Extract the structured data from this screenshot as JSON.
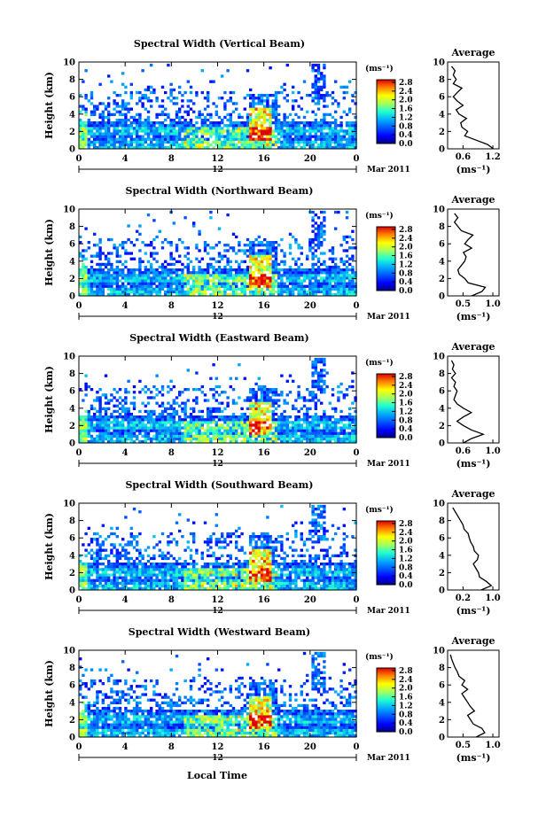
{
  "figure": {
    "date_label": "Mar 2011",
    "day_label": "12",
    "xlabel_bottom": "Local Time",
    "ylabel": "Height (km)",
    "colorbar_unit": "(ms⁻¹)",
    "avg_title": "Average",
    "avg_xlabel": "(ms⁻¹)",
    "x_ticks": [
      "0",
      "4",
      "8",
      "12",
      "16",
      "20",
      "0"
    ],
    "y_ticks": [
      "0",
      "2",
      "4",
      "6",
      "8",
      "10"
    ],
    "colorbar_ticks": [
      "0.0",
      "0.4",
      "0.8",
      "1.2",
      "1.6",
      "2.0",
      "2.4",
      "2.8"
    ],
    "panels": [
      {
        "title": "Spectral Width (Vertical Beam)",
        "avg_ticks": [
          "0.6",
          "1.2"
        ]
      },
      {
        "title": "Spectral Width (Northward Beam)",
        "avg_ticks": [
          "0.5",
          "1.0"
        ]
      },
      {
        "title": "Spectral Width (Eastward Beam)",
        "avg_ticks": [
          "0.6",
          "1.0"
        ]
      },
      {
        "title": "Spectral Width (Southward Beam)",
        "avg_ticks": [
          "0.2",
          "1.0"
        ]
      },
      {
        "title": "Spectral Width (Westward Beam)",
        "avg_ticks": [
          "0.5",
          "1.0"
        ]
      }
    ]
  },
  "chart_data": [
    {
      "type": "heatmap",
      "title": "Spectral Width (Vertical Beam)",
      "xlabel": "",
      "ylabel": "Height (km)",
      "xlim": [
        0,
        24
      ],
      "ylim": [
        0,
        10
      ],
      "colorbar": {
        "label": "(ms⁻¹)",
        "range": [
          0,
          2.8
        ]
      }
    },
    {
      "type": "line",
      "title": "Average",
      "xlabel": "(ms⁻¹)",
      "ylabel": "",
      "xlim": [
        0.45,
        1.35
      ],
      "ylim": [
        0,
        10
      ],
      "x": [
        1.25,
        1.15,
        0.95,
        0.75,
        0.8,
        0.7,
        0.68,
        0.78,
        0.65,
        0.6,
        0.72,
        0.62,
        0.55,
        0.62,
        0.7,
        0.55,
        0.6,
        0.55,
        0.58,
        0.52
      ],
      "y": [
        0,
        0.5,
        1,
        1.5,
        2,
        2.5,
        3,
        3.5,
        4,
        4.5,
        5,
        5.5,
        6,
        6.5,
        7,
        7.5,
        8,
        8.5,
        9,
        9.5
      ]
    },
    {
      "type": "heatmap",
      "title": "Spectral Width (Northward Beam)",
      "xlabel": "",
      "ylabel": "Height (km)",
      "xlim": [
        0,
        24
      ],
      "ylim": [
        0,
        10
      ],
      "colorbar": {
        "label": "(ms⁻¹)",
        "range": [
          0,
          2.8
        ]
      }
    },
    {
      "type": "line",
      "title": "Average",
      "xlabel": "(ms⁻¹)",
      "ylabel": "",
      "xlim": [
        0.35,
        1.1
      ],
      "ylim": [
        0,
        10
      ],
      "x": [
        0.7,
        0.85,
        0.9,
        0.65,
        0.6,
        0.52,
        0.5,
        0.55,
        0.6,
        0.62,
        0.58,
        0.7,
        0.6,
        0.65,
        0.72,
        0.55,
        0.5,
        0.45,
        0.5,
        0.45
      ],
      "y": [
        0,
        0.5,
        1,
        1.5,
        2,
        2.5,
        3,
        3.5,
        4,
        4.5,
        5,
        5.5,
        6,
        6.5,
        7,
        7.5,
        8,
        8.5,
        9,
        9.5
      ]
    },
    {
      "type": "heatmap",
      "title": "Spectral Width (Eastward Beam)",
      "xlabel": "",
      "ylabel": "Height (km)",
      "xlim": [
        0,
        24
      ],
      "ylim": [
        0,
        10
      ],
      "colorbar": {
        "label": "(ms⁻¹)",
        "range": [
          0,
          2.8
        ]
      }
    },
    {
      "type": "line",
      "title": "Average",
      "xlabel": "(ms⁻¹)",
      "ylabel": "",
      "xlim": [
        0.5,
        1.15
      ],
      "ylim": [
        0,
        10
      ],
      "x": [
        0.7,
        0.8,
        0.95,
        0.8,
        0.7,
        0.62,
        0.7,
        0.8,
        0.7,
        0.62,
        0.58,
        0.6,
        0.62,
        0.58,
        0.6,
        0.55,
        0.6,
        0.56,
        0.58,
        0.55
      ],
      "y": [
        0,
        0.5,
        1,
        1.5,
        2,
        2.5,
        3,
        3.5,
        4,
        4.5,
        5,
        5.5,
        6,
        6.5,
        7,
        7.5,
        8,
        8.5,
        9,
        9.5
      ]
    },
    {
      "type": "heatmap",
      "title": "Spectral Width (Southward Beam)",
      "xlabel": "",
      "ylabel": "Height (km)",
      "xlim": [
        0,
        24
      ],
      "ylim": [
        0,
        10
      ],
      "colorbar": {
        "label": "(ms⁻¹)",
        "range": [
          0,
          2.8
        ]
      }
    },
    {
      "type": "line",
      "title": "Average",
      "xlabel": "(ms⁻¹)",
      "ylabel": "",
      "xlim": [
        0.1,
        1.1
      ],
      "ylim": [
        0,
        10
      ],
      "x": [
        0.75,
        0.95,
        0.85,
        0.72,
        0.7,
        0.65,
        0.6,
        0.68,
        0.7,
        0.62,
        0.6,
        0.55,
        0.52,
        0.5,
        0.42,
        0.4,
        0.35,
        0.3,
        0.25,
        0.2
      ],
      "y": [
        0,
        0.5,
        1,
        1.5,
        2,
        2.5,
        3,
        3.5,
        4,
        4.5,
        5,
        5.5,
        6,
        6.5,
        7,
        7.5,
        8,
        8.5,
        9,
        9.5
      ]
    },
    {
      "type": "heatmap",
      "title": "Spectral Width (Westward Beam)",
      "xlabel": "Local Time",
      "ylabel": "Height (km)",
      "xlim": [
        0,
        24
      ],
      "ylim": [
        0,
        10
      ],
      "colorbar": {
        "label": "(ms⁻¹)",
        "range": [
          0,
          2.8
        ]
      }
    },
    {
      "type": "line",
      "title": "Average",
      "xlabel": "(ms⁻¹)",
      "ylabel": "",
      "xlim": [
        0.25,
        1.15
      ],
      "ylim": [
        0,
        10
      ],
      "x": [
        0.75,
        0.9,
        0.85,
        0.7,
        0.65,
        0.6,
        0.72,
        0.65,
        0.6,
        0.55,
        0.5,
        0.6,
        0.5,
        0.55,
        0.45,
        0.42,
        0.38,
        0.35,
        0.32,
        0.3
      ],
      "y": [
        0,
        0.5,
        1,
        1.5,
        2,
        2.5,
        3,
        3.5,
        4,
        4.5,
        5,
        5.5,
        6,
        6.5,
        7,
        7.5,
        8,
        8.5,
        9,
        9.5
      ]
    }
  ]
}
